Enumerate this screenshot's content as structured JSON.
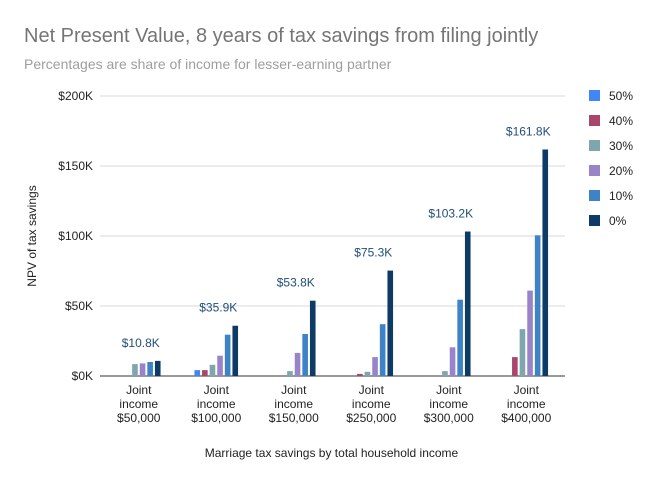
{
  "chart_data": {
    "type": "bar",
    "title": "Net Present Value, 8 years of tax savings from filing jointly",
    "subtitle": "Percentages are share of income for lesser-earning partner",
    "xlabel": "Marriage tax savings by total household income",
    "ylabel": "NPV of tax savings",
    "ylim": [
      0,
      200000
    ],
    "yticks": [
      0,
      50000,
      100000,
      150000,
      200000
    ],
    "ytick_labels": [
      "$0K",
      "$50K",
      "$100K",
      "$150K",
      "$200K"
    ],
    "grid": true,
    "legend_position": "right",
    "categories": [
      [
        "Joint",
        "income",
        "$50,000"
      ],
      [
        "Joint",
        "income",
        "$100,000"
      ],
      [
        "Joint",
        "income",
        "$150,000"
      ],
      [
        "Joint",
        "income",
        "$250,000"
      ],
      [
        "Joint",
        "income",
        "$300,000"
      ],
      [
        "Joint",
        "income",
        "$400,000"
      ]
    ],
    "series": [
      {
        "name": "50%",
        "color": "#4285f4",
        "values": [
          0,
          4200,
          0,
          0,
          0,
          0
        ]
      },
      {
        "name": "40%",
        "color": "#a8466c",
        "values": [
          0,
          4200,
          0,
          1500,
          0,
          13500
        ]
      },
      {
        "name": "30%",
        "color": "#7fa6ad",
        "values": [
          8500,
          8000,
          3500,
          3000,
          3500,
          33500
        ]
      },
      {
        "name": "20%",
        "color": "#9983c9",
        "values": [
          9000,
          14500,
          16500,
          13500,
          20500,
          61000
        ]
      },
      {
        "name": "10%",
        "color": "#3d83c6",
        "values": [
          10000,
          29500,
          30000,
          37000,
          54500,
          100500
        ]
      },
      {
        "name": "0%",
        "color": "#0d3b66",
        "values": [
          10800,
          35900,
          53800,
          75300,
          103200,
          161800
        ]
      }
    ],
    "annotations": [
      "$10.8K",
      "$35.9K",
      "$53.8K",
      "$75.3K",
      "$103.2K",
      "$161.8K"
    ]
  }
}
